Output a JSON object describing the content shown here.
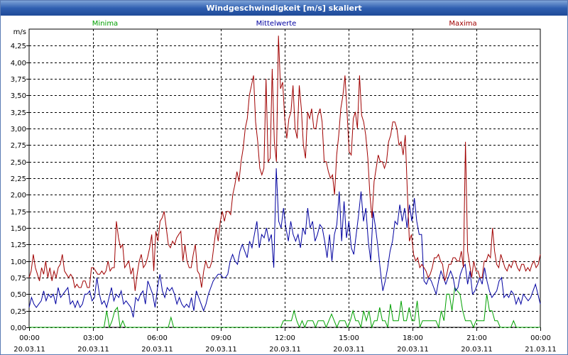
{
  "window": {
    "title": "Windgeschwindigkeit [m/s] skaliert"
  },
  "chart_data": {
    "type": "line",
    "title": "Windgeschwindigkeit [m/s] skaliert",
    "ylabel": "m/s",
    "ylim": [
      0,
      4.5
    ],
    "xlim": [
      0,
      24
    ],
    "y_ticks": [
      "0,00",
      "0,25",
      "0,50",
      "0,75",
      "1,00",
      "1,25",
      "1,50",
      "1,75",
      "2,00",
      "2,25",
      "2,50",
      "2,75",
      "3,00",
      "3,25",
      "3,50",
      "3,75",
      "4,00",
      "4,25"
    ],
    "x_ticks": [
      {
        "time": "00:00",
        "date": "20.03.11"
      },
      {
        "time": "03:00",
        "date": "20.03.11"
      },
      {
        "time": "06:00",
        "date": "20.03.11"
      },
      {
        "time": "09:00",
        "date": "20.03.11"
      },
      {
        "time": "12:00",
        "date": "20.03.11"
      },
      {
        "time": "15:00",
        "date": "20.03.11"
      },
      {
        "time": "18:00",
        "date": "20.03.11"
      },
      {
        "time": "21:00",
        "date": "20.03.11"
      },
      {
        "time": "00:00",
        "date": "21.03.11"
      }
    ],
    "legend": [
      "Minima",
      "Mittelwerte",
      "Maxima"
    ],
    "series": [
      {
        "name": "Minima",
        "color": "#00a000",
        "values": [
          0,
          0,
          0,
          0,
          0,
          0,
          0,
          0,
          0,
          0,
          0,
          0,
          0,
          0,
          0,
          0,
          0,
          0,
          0,
          0,
          0,
          0,
          0,
          0,
          0,
          0,
          0,
          0,
          0,
          0.25,
          0,
          0.1,
          0.25,
          0.3,
          0,
          0.1,
          0,
          0,
          0,
          0,
          0,
          0,
          0,
          0,
          0,
          0,
          0,
          0,
          0,
          0,
          0,
          0,
          0,
          0.15,
          0,
          0,
          0,
          0,
          0,
          0,
          0,
          0,
          0,
          0,
          0,
          0,
          0,
          0,
          0,
          0,
          0,
          0,
          0,
          0,
          0,
          0,
          0,
          0,
          0,
          0,
          0,
          0,
          0,
          0,
          0,
          0,
          0,
          0,
          0,
          0,
          0,
          0,
          0,
          0,
          0,
          0.1,
          0.1,
          0.1,
          0.1,
          0.25,
          0.1,
          0,
          0.1,
          0,
          0.1,
          0.1,
          0.1,
          0,
          0.1,
          0.1,
          0.1,
          0,
          0.1,
          0.2,
          0.1,
          0,
          0.1,
          0.1,
          0.1,
          0,
          0.1,
          0.25,
          0.1,
          0.1,
          0,
          0.25,
          0.1,
          0.25,
          0,
          0.1,
          0.1,
          0.3,
          0.1,
          0.1,
          0,
          0.35,
          0.1,
          0.1,
          0.1,
          0.4,
          0.1,
          0.1,
          0.3,
          0.1,
          0.1,
          0.4,
          0,
          0.1,
          0.1,
          0.1,
          0.1,
          0.1,
          0.1,
          0,
          0.25,
          0.1,
          0.5,
          0.5,
          0.25,
          0.6,
          0.55,
          0.5,
          0.25,
          0.1,
          0.1,
          0.1,
          0,
          0.1,
          0.1,
          0.1,
          0.1,
          0.5,
          0.25,
          0.25,
          0.1,
          0.1,
          0,
          0,
          0,
          0,
          0,
          0.1,
          0,
          0,
          0,
          0,
          0,
          0,
          0,
          0,
          0,
          0
        ]
      },
      {
        "name": "Mittelwerte",
        "color": "#0000a0",
        "values": [
          0.3,
          0.45,
          0.35,
          0.3,
          0.35,
          0.4,
          0.55,
          0.4,
          0.5,
          0.45,
          0.5,
          0.35,
          0.6,
          0.45,
          0.5,
          0.55,
          0.6,
          0.35,
          0.4,
          0.3,
          0.4,
          0.3,
          0.35,
          0.5,
          0.5,
          0.55,
          0.4,
          0.45,
          0.75,
          0.5,
          0.35,
          0.4,
          0.3,
          0.45,
          0.6,
          0.4,
          0.5,
          0.45,
          0.55,
          0.35,
          0.4,
          0.35,
          0.3,
          0.15,
          0.45,
          0.4,
          0.5,
          0.55,
          0.35,
          0.7,
          0.6,
          0.5,
          0.3,
          0.6,
          0.8,
          0.55,
          0.45,
          0.6,
          0.55,
          0.6,
          0.5,
          0.35,
          0.45,
          0.35,
          0.3,
          0.35,
          0.3,
          0.45,
          0.25,
          0.55,
          0.45,
          0.35,
          0.25,
          0.35,
          0.5,
          0.6,
          0.7,
          0.75,
          0.8,
          0.8,
          0.75,
          0.75,
          0.8,
          1.0,
          1.1,
          1.0,
          0.95,
          1.15,
          1.25,
          1.15,
          1.05,
          1.3,
          1.2,
          1.4,
          1.6,
          1.2,
          1.4,
          1.35,
          1.5,
          1.3,
          1.4,
          0.9,
          2.4,
          1.6,
          1.5,
          1.8,
          1.5,
          1.3,
          1.6,
          1.4,
          1.3,
          1.4,
          1.2,
          1.5,
          1.4,
          1.8,
          1.5,
          1.6,
          1.3,
          1.4,
          1.55,
          1.5,
          1.3,
          1.05,
          1.4,
          1.0,
          1.4,
          1.55,
          2.05,
          1.3,
          1.9,
          1.35,
          1.6,
          1.2,
          1.1,
          1.4,
          1.7,
          2.05,
          1.6,
          1.8,
          1.3,
          1.0,
          1.75,
          1.5,
          1.2,
          0.85,
          0.55,
          0.7,
          0.9,
          1.15,
          1.3,
          1.6,
          1.55,
          1.85,
          1.6,
          1.8,
          1.5,
          1.85,
          1.6,
          1.95,
          1.6,
          1.4,
          1.4,
          0.7,
          0.65,
          0.75,
          0.7,
          0.6,
          0.5,
          0.7,
          0.85,
          0.75,
          0.65,
          0.75,
          0.85,
          0.75,
          0.55,
          0.6,
          0.8,
          0.9,
          0.95,
          0.65,
          0.85,
          0.5,
          0.55,
          0.65,
          0.75,
          0.65,
          0.9,
          0.7,
          0.55,
          0.45,
          0.5,
          0.55,
          0.7,
          0.75,
          0.45,
          0.5,
          0.45,
          0.55,
          0.5,
          0.35,
          0.45,
          0.35,
          0.5,
          0.45,
          0.4,
          0.45,
          0.55,
          0.65,
          0.5,
          0.35
        ]
      },
      {
        "name": "Maxima",
        "color": "#a00000",
        "values": [
          0.75,
          0.85,
          1.1,
          0.9,
          0.8,
          0.7,
          0.9,
          0.8,
          1.0,
          0.75,
          0.9,
          0.7,
          0.85,
          0.75,
          0.9,
          0.95,
          1.1,
          0.85,
          0.8,
          0.75,
          0.8,
          0.75,
          0.6,
          0.65,
          0.6,
          0.6,
          0.7,
          0.7,
          0.6,
          0.6,
          0.9,
          0.9,
          0.85,
          0.8,
          0.8,
          0.85,
          0.8,
          0.85,
          1.0,
          0.85,
          0.9,
          0.9,
          1.6,
          1.35,
          1.2,
          1.25,
          0.9,
          0.95,
          1.0,
          0.8,
          0.9,
          0.55,
          0.8,
          1.0,
          1.1,
          0.9,
          0.95,
          1.05,
          1.2,
          1.4,
          0.85,
          1.45,
          1.3,
          1.6,
          1.65,
          1.75,
          1.5,
          1.25,
          1.2,
          1.3,
          1.25,
          1.35,
          1.4,
          1.45,
          1.0,
          1.25,
          1.0,
          0.9,
          0.9,
          1.1,
          1.25,
          0.85,
          0.8,
          0.6,
          0.85,
          1.0,
          0.9,
          0.9,
          1.0,
          1.25,
          1.5,
          1.3,
          1.6,
          1.75,
          1.6,
          1.75,
          1.75,
          1.7,
          2.0,
          2.15,
          2.35,
          2.2,
          2.5,
          2.7,
          3.0,
          3.15,
          3.5,
          3.65,
          3.8,
          3.1,
          2.8,
          2.4,
          2.3,
          2.4,
          3.75,
          2.5,
          2.55,
          3.9,
          2.8,
          2.5,
          4.4,
          3.6,
          3.7,
          3.15,
          2.85,
          3.15,
          3.25,
          3.65,
          3.0,
          2.85,
          3.65,
          3.3,
          2.75,
          2.55,
          3.25,
          3.15,
          3.3,
          3.0,
          3.0,
          3.2,
          3.3,
          3.1,
          2.5,
          2.5,
          2.35,
          2.25,
          2.3,
          2.0,
          2.6,
          2.9,
          3.3,
          3.5,
          3.8,
          3.25,
          2.65,
          2.6,
          3.15,
          3.25,
          3.0,
          3.8,
          3.2,
          3.1,
          2.9,
          2.55,
          2.0,
          1.65,
          2.2,
          2.4,
          2.6,
          2.5,
          2.5,
          2.4,
          2.5,
          2.8,
          2.9,
          3.1,
          3.1,
          3.0,
          2.75,
          2.8,
          2.6,
          2.9,
          2.05,
          1.3,
          1.4,
          1.1,
          1.0,
          1.05,
          0.9,
          0.95,
          0.9,
          0.85,
          0.75,
          0.8,
          0.9,
          1.05,
          1.05,
          1.1,
          1.0,
          0.95,
          0.7,
          0.8,
          0.95,
          0.95,
          1.05,
          1.05,
          1.0,
          1.0,
          1.15,
          0.9,
          2.8,
          1.15,
          0.95,
          0.75,
          1.0,
          0.85,
          0.85,
          0.75,
          0.75,
          1.0,
          1.0,
          1.1,
          1.05,
          1.5,
          1.15,
          0.95,
          0.9,
          1.1,
          1.0,
          0.9,
          0.85,
          0.95,
          0.9,
          1.0,
          1.0,
          0.9,
          0.85,
          0.95,
          0.95,
          0.85,
          0.9,
          0.85,
          0.95,
          1.0,
          0.9,
          0.95,
          1.1
        ]
      }
    ]
  }
}
